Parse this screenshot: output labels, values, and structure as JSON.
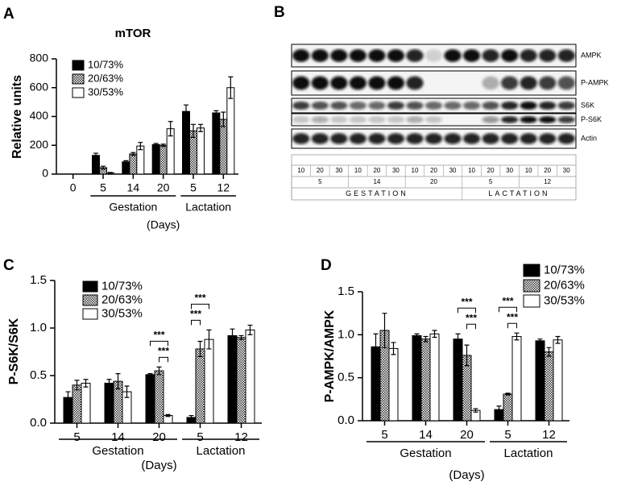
{
  "chart_data": [
    {
      "panel_label": "A",
      "type": "bar",
      "title": "mTOR",
      "y_label": "Relative units",
      "x_label": "(Days)",
      "categories": [
        "0",
        "5",
        "14",
        "20",
        "5",
        "12"
      ],
      "groups": [
        {
          "label": "Gestation",
          "start": 1,
          "end": 3
        },
        {
          "label": "Lactation",
          "start": 4,
          "end": 5
        }
      ],
      "series": [
        {
          "name": "10/73%",
          "color": "#000000",
          "values": [
            null,
            130,
            85,
            205,
            435,
            425
          ],
          "errors": [
            null,
            15,
            8,
            8,
            45,
            15
          ]
        },
        {
          "name": "20/63%",
          "color": "#9a9a9a",
          "hatch": true,
          "values": [
            null,
            45,
            140,
            200,
            300,
            380
          ],
          "errors": [
            null,
            10,
            10,
            8,
            45,
            50
          ]
        },
        {
          "name": "30/53%",
          "color": "#ffffff",
          "values": [
            null,
            8,
            195,
            315,
            320,
            600
          ],
          "errors": [
            null,
            3,
            25,
            50,
            25,
            75
          ]
        }
      ],
      "ylim": [
        0,
        800
      ],
      "yticks": [
        0,
        200,
        400,
        600,
        800
      ],
      "legend": "upper left",
      "significance": []
    },
    {
      "panel_label": "C",
      "type": "bar",
      "y_label": "P-S6K/S6K",
      "x_label": "(Days)",
      "categories": [
        "5",
        "14",
        "20",
        "5",
        "12"
      ],
      "groups": [
        {
          "label": "Gestation",
          "start": 0,
          "end": 2
        },
        {
          "label": "Lactation",
          "start": 3,
          "end": 4
        }
      ],
      "series": [
        {
          "name": "10/73%",
          "color": "#000000",
          "values": [
            0.27,
            0.42,
            0.51,
            0.06,
            0.92
          ],
          "errors": [
            0.06,
            0.04,
            0.01,
            0.02,
            0.07
          ]
        },
        {
          "name": "20/63%",
          "color": "#9a9a9a",
          "hatch": true,
          "values": [
            0.4,
            0.44,
            0.55,
            0.78,
            0.9
          ],
          "errors": [
            0.05,
            0.08,
            0.04,
            0.08,
            0.02
          ]
        },
        {
          "name": "30/53%",
          "color": "#ffffff",
          "values": [
            0.42,
            0.33,
            0.08,
            0.88,
            0.98
          ],
          "errors": [
            0.04,
            0.06,
            0.01,
            0.1,
            0.05
          ]
        }
      ],
      "ylim": [
        0,
        1.5
      ],
      "yticks": [
        {
          "value": 0,
          "label": "0.0"
        },
        0.5,
        {
          "value": 1,
          "label": "1.0"
        },
        1.5
      ],
      "legend": "upper left",
      "significance": [
        {
          "label": "***",
          "category": 2,
          "from": 1,
          "to": 2
        },
        {
          "label": "***",
          "category": 2,
          "from": 0,
          "to": 2
        },
        {
          "label": "***",
          "category": 3,
          "from": 0,
          "to": 1
        },
        {
          "label": "***",
          "category": 3,
          "from": 0,
          "to": 2
        }
      ]
    },
    {
      "panel_label": "D",
      "type": "bar",
      "y_label": "P-AMPK/AMPK",
      "x_label": "(Days)",
      "categories": [
        "5",
        "14",
        "20",
        "5",
        "12"
      ],
      "groups": [
        {
          "label": "Gestation",
          "start": 0,
          "end": 2
        },
        {
          "label": "Lactation",
          "start": 3,
          "end": 4
        }
      ],
      "series": [
        {
          "name": "10/73%",
          "color": "#000000",
          "values": [
            0.86,
            0.99,
            0.95,
            0.13,
            0.93
          ],
          "errors": [
            0.15,
            0.02,
            0.06,
            0.04,
            0.02
          ]
        },
        {
          "name": "20/63%",
          "color": "#9a9a9a",
          "hatch": true,
          "values": [
            1.05,
            0.95,
            0.76,
            0.31,
            0.8
          ],
          "errors": [
            0.2,
            0.03,
            0.12,
            0.01,
            0.05
          ]
        },
        {
          "name": "30/53%",
          "color": "#ffffff",
          "values": [
            0.84,
            1.01,
            0.12,
            0.98,
            0.94
          ],
          "errors": [
            0.07,
            0.04,
            0.02,
            0.04,
            0.04
          ]
        }
      ],
      "ylim": [
        0,
        1.5
      ],
      "yticks": [
        {
          "value": 0,
          "label": "0.0"
        },
        0.5,
        {
          "value": 1,
          "label": "1.0"
        },
        1.5
      ],
      "legend": "upper right",
      "significance": [
        {
          "label": "***",
          "category": 2,
          "from": 1,
          "to": 2
        },
        {
          "label": "***",
          "category": 2,
          "from": 0,
          "to": 2
        },
        {
          "label": "***",
          "category": 3,
          "from": 1,
          "to": 2
        },
        {
          "label": "***",
          "category": 3,
          "from": 0,
          "to": 2
        }
      ]
    }
  ],
  "blot": {
    "panel_label": "B",
    "rows": [
      "AMPK",
      "P-AMPK",
      "S6K",
      "P-S6K",
      "Actin"
    ],
    "lane_doses": [
      "10",
      "20",
      "30"
    ],
    "phases": [
      {
        "label": "GESTATION",
        "days": [
          "5",
          "14",
          "20"
        ]
      },
      {
        "label": "LACTATION",
        "days": [
          "5",
          "12"
        ]
      }
    ]
  }
}
